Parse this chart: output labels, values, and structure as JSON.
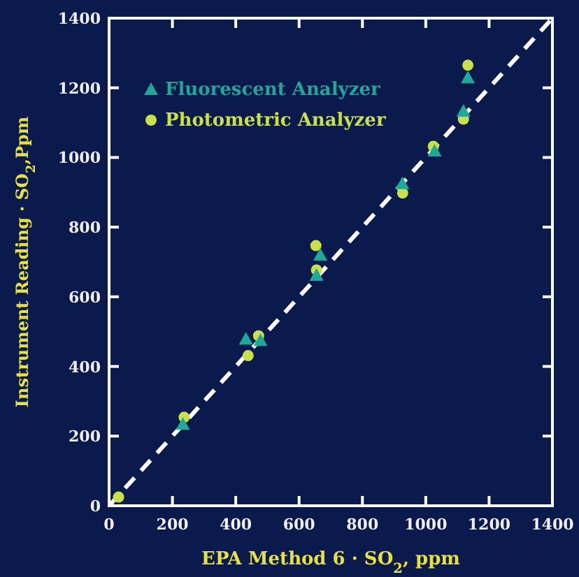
{
  "chart_data": {
    "type": "scatter",
    "xlabel": "EPA Method 6 · SO$_{2}$, ppm",
    "ylabel": "Instrument Reading · SO$_{2}$,Ppm",
    "xlim": [
      0,
      1400
    ],
    "ylim": [
      0,
      1400
    ],
    "xticks": [
      0,
      200,
      400,
      600,
      800,
      1000,
      1200,
      1400
    ],
    "yticks": [
      0,
      200,
      400,
      600,
      800,
      1000,
      1200,
      1400
    ],
    "legend": "top left",
    "grid": false,
    "series": [
      {
        "name": "Fluorescent Analyzer",
        "color": "#1fa89a",
        "marker": "triangle",
        "x": [
          233,
          432,
          478,
          655,
          667,
          926,
          1028,
          1119,
          1133
        ],
        "values": [
          234,
          479,
          475,
          662,
          720,
          925,
          1019,
          1133,
          1229
        ]
      },
      {
        "name": "Photometric Analyzer",
        "color": "#c8e04a",
        "marker": "circle",
        "x": [
          30,
          237,
          439,
          472,
          655,
          653,
          927,
          1024,
          1119,
          1133
        ],
        "values": [
          25,
          254,
          431,
          488,
          677,
          747,
          898,
          1032,
          1110,
          1265
        ]
      },
      {
        "type": "line",
        "color": "#ffffff",
        "line_style": "dashed",
        "marker": "none",
        "x": [
          0,
          1400
        ],
        "values": [
          0,
          1400
        ]
      }
    ]
  }
}
